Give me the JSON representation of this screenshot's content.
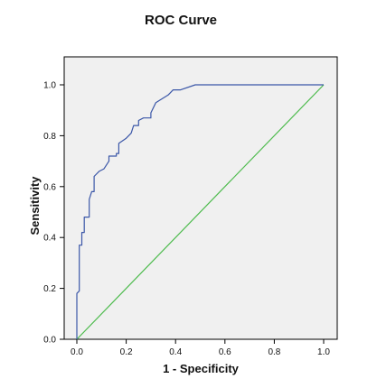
{
  "chart_data": {
    "type": "line",
    "title": "ROC Curve",
    "xlabel": "1 - Specificity",
    "ylabel": "Sensitivity",
    "xlim": [
      0,
      1
    ],
    "ylim": [
      0,
      1
    ],
    "x_ticks": [
      "0.0",
      "0.2",
      "0.4",
      "0.6",
      "0.8",
      "1.0"
    ],
    "y_ticks": [
      "0.0",
      "0.2",
      "0.4",
      "0.6",
      "0.8",
      "1.0"
    ],
    "grid": false,
    "plot_background": "#f0f0f0",
    "series": [
      {
        "color": "#3b57a8",
        "points": [
          [
            0.0,
            0.0
          ],
          [
            0.0,
            0.18
          ],
          [
            0.01,
            0.19
          ],
          [
            0.01,
            0.37
          ],
          [
            0.02,
            0.37
          ],
          [
            0.02,
            0.42
          ],
          [
            0.03,
            0.42
          ],
          [
            0.03,
            0.48
          ],
          [
            0.05,
            0.48
          ],
          [
            0.05,
            0.55
          ],
          [
            0.06,
            0.58
          ],
          [
            0.07,
            0.58
          ],
          [
            0.07,
            0.64
          ],
          [
            0.09,
            0.66
          ],
          [
            0.11,
            0.67
          ],
          [
            0.13,
            0.7
          ],
          [
            0.13,
            0.72
          ],
          [
            0.16,
            0.72
          ],
          [
            0.16,
            0.73
          ],
          [
            0.17,
            0.73
          ],
          [
            0.17,
            0.77
          ],
          [
            0.2,
            0.79
          ],
          [
            0.22,
            0.81
          ],
          [
            0.23,
            0.84
          ],
          [
            0.25,
            0.84
          ],
          [
            0.25,
            0.86
          ],
          [
            0.27,
            0.87
          ],
          [
            0.3,
            0.87
          ],
          [
            0.3,
            0.89
          ],
          [
            0.32,
            0.93
          ],
          [
            0.37,
            0.96
          ],
          [
            0.39,
            0.98
          ],
          [
            0.42,
            0.98
          ],
          [
            0.48,
            1.0
          ],
          [
            1.0,
            1.0
          ]
        ]
      },
      {
        "color": "#4dbb4d",
        "points": [
          [
            0.0,
            0.0
          ],
          [
            1.0,
            1.0
          ]
        ]
      }
    ]
  }
}
